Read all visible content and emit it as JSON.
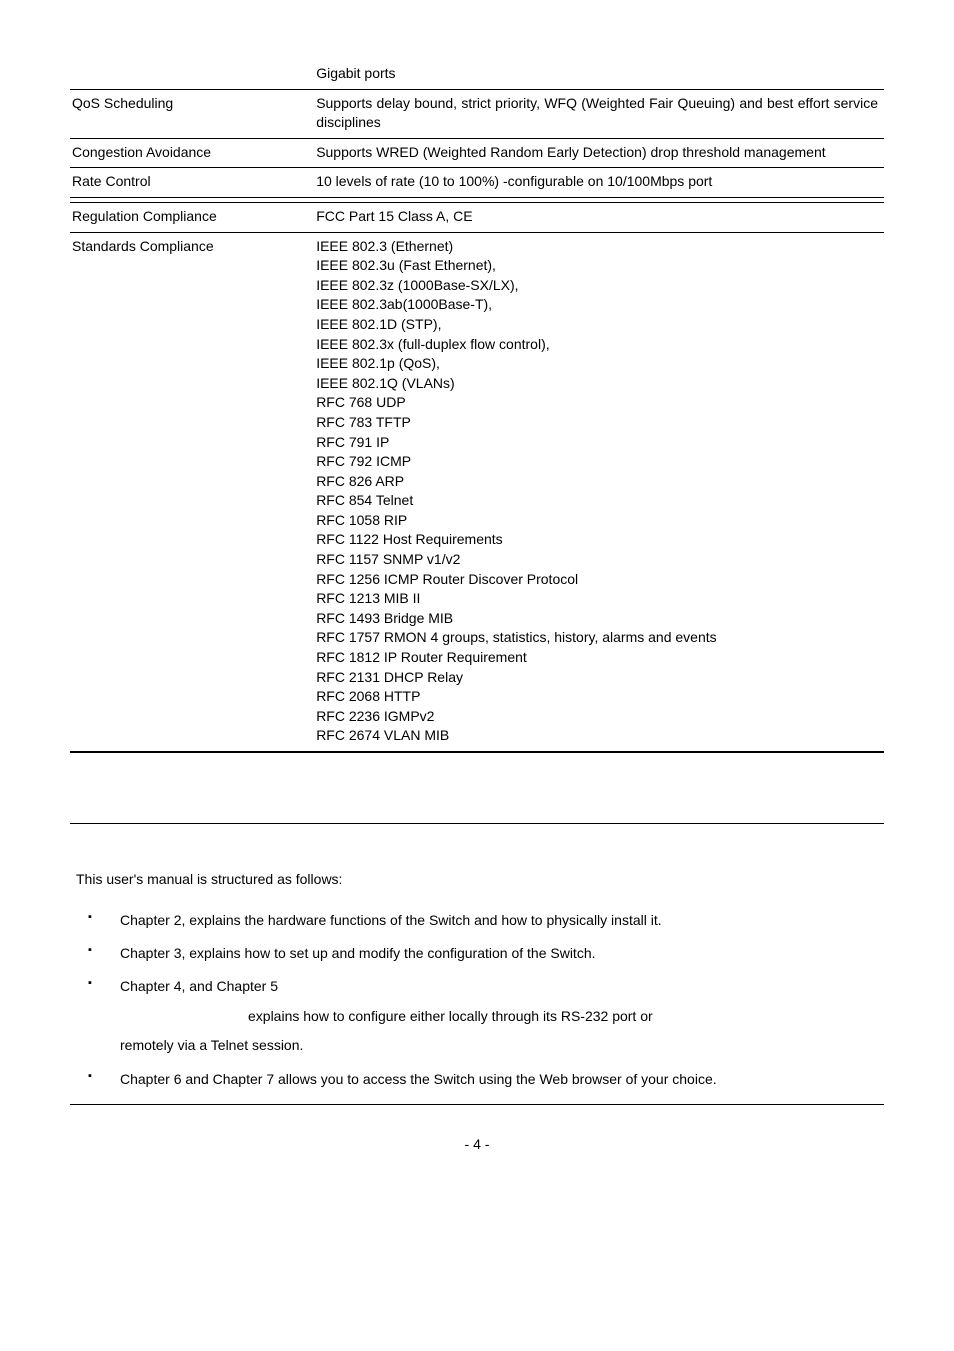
{
  "spec_rows": [
    {
      "feature": "",
      "value": "Gigabit ports"
    },
    {
      "feature": "QoS Scheduling",
      "value": "Supports delay bound, strict priority, WFQ (Weighted Fair Queuing) and best effort service disciplines"
    },
    {
      "feature": "Congestion Avoidance",
      "value": "Supports WRED (Weighted Random Early Detection) drop threshold management"
    },
    {
      "feature": "Rate Control",
      "value": "10 levels of rate (10 to 100%)  -configurable on 10/100Mbps port"
    },
    {
      "feature": "",
      "value": ""
    },
    {
      "feature": "Regulation Compliance",
      "value": "FCC Part 15 Class A, CE"
    },
    {
      "feature": "Standards Compliance",
      "value": "IEEE 802.3 (Ethernet)\nIEEE 802.3u (Fast Ethernet),\nIEEE 802.3z (1000Base-SX/LX),\nIEEE 802.3ab(1000Base-T),\nIEEE 802.1D (STP),\nIEEE 802.3x (full-duplex flow control),\nIEEE 802.1p (QoS),\nIEEE 802.1Q (VLANs)\nRFC 768 UDP\nRFC 783 TFTP\nRFC 791 IP\nRFC 792 ICMP\nRFC 826 ARP\nRFC 854 Telnet\nRFC 1058 RIP\nRFC 1122 Host Requirements\nRFC 1157 SNMP v1/v2\nRFC 1256 ICMP Router Discover Protocol\nRFC 1213 MIB II\nRFC 1493 Bridge MIB\nRFC 1757 RMON 4 groups, statistics, history, alarms and events\nRFC 1812 IP Router Requirement\nRFC 2131 DHCP Relay\nRFC 2068 HTTP\nRFC 2236 IGMPv2\nRFC 2674 VLAN MIB"
    }
  ],
  "manual": {
    "intro": "This user's manual is structured as follows:",
    "items": [
      {
        "main": "Chapter 2,                   explains the hardware functions of the Switch and how to physically install it.",
        "sub": null
      },
      {
        "main": "Chapter 3,                      explains how to set up and modify the configuration of the Switch.",
        "sub": null
      },
      {
        "main": "Chapter   4,                                                                           and   Chapter   5",
        "sub": "explains  how  to  configure  either  locally  through  its  RS-232  port  or remotely via a Telnet session."
      },
      {
        "main": "Chapter 6                                       and Chapter 7                                                                  allows you to access the Switch using the Web browser of your choice.",
        "sub": null
      }
    ]
  },
  "pagenum": "- 4 -"
}
